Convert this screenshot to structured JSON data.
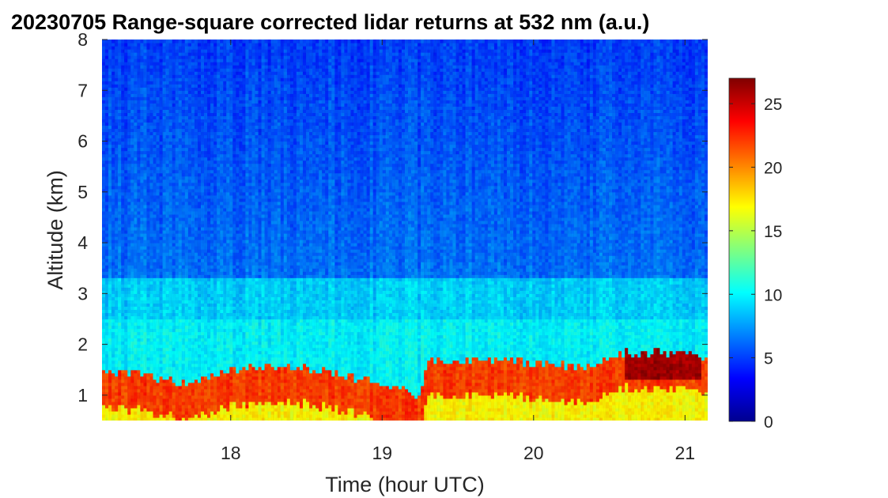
{
  "chart_data": {
    "type": "heatmap",
    "title": "20230705  Range-square corrected lidar returns at 532 nm (a.u.)",
    "xlabel": "Time (hour UTC)",
    "ylabel": "Altitude (km)",
    "xlim": [
      17.15,
      21.15
    ],
    "ylim": [
      0.5,
      8
    ],
    "xticks": [
      18,
      19,
      20,
      21
    ],
    "yticks": [
      1,
      2,
      3,
      4,
      5,
      6,
      7,
      8
    ],
    "colorbar": {
      "colormap": "jet",
      "clim": [
        0,
        27
      ],
      "ticks": [
        0,
        5,
        10,
        15,
        20,
        25
      ]
    },
    "regions": [
      {
        "altitude_km": [
          0.5,
          1.2
        ],
        "value": 17
      },
      {
        "altitude_km": [
          1.0,
          1.9
        ],
        "value": 22
      },
      {
        "altitude_km": [
          1.9,
          2.5
        ],
        "value": 10
      },
      {
        "altitude_km": [
          2.5,
          3.3
        ],
        "value": 9
      },
      {
        "altitude_km": [
          3.3,
          8.0
        ],
        "value": 5
      }
    ],
    "boundary_layer_top_km": [
      {
        "time": 17.2,
        "top": 1.5
      },
      {
        "time": 17.5,
        "top": 1.35
      },
      {
        "time": 17.7,
        "top": 1.2
      },
      {
        "time": 18.0,
        "top": 1.5
      },
      {
        "time": 18.5,
        "top": 1.55
      },
      {
        "time": 18.9,
        "top": 1.3
      },
      {
        "time": 19.25,
        "top": 1.0
      },
      {
        "time": 19.3,
        "top": 1.7
      },
      {
        "time": 19.8,
        "top": 1.7
      },
      {
        "time": 20.3,
        "top": 1.55
      },
      {
        "time": 20.6,
        "top": 1.85
      },
      {
        "time": 21.0,
        "top": 1.85
      },
      {
        "time": 21.15,
        "top": 1.7
      }
    ],
    "max_signal_region": {
      "time": [
        20.6,
        21.1
      ],
      "altitude_km": [
        1.3,
        1.9
      ],
      "value": 26
    }
  }
}
